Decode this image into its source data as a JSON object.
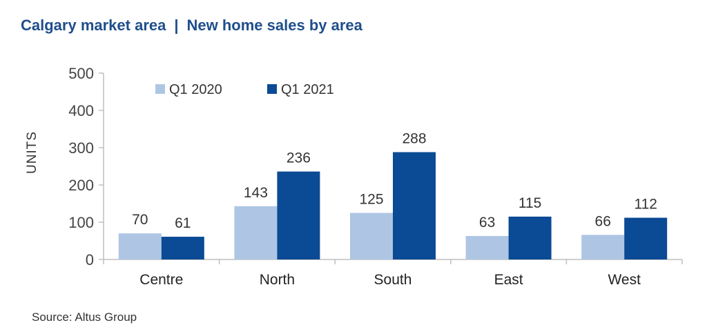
{
  "header": {
    "title_left": "Calgary market area",
    "separator": "|",
    "title_right": "New home sales by area"
  },
  "footer": {
    "source": "Source: Altus Group"
  },
  "colors": {
    "q1_2020": "#aec6e4",
    "q1_2021": "#0b4a94",
    "axis": "#bfbfbf",
    "title": "#1f4e8c"
  },
  "chart_data": {
    "type": "bar",
    "title": "Calgary market area | New home sales by area",
    "xlabel": "",
    "ylabel": "UNITS",
    "ylim": [
      0,
      500
    ],
    "yticks": [
      0,
      100,
      200,
      300,
      400,
      500
    ],
    "grid": false,
    "legend_position": "top-left",
    "categories": [
      "Centre",
      "North",
      "South",
      "East",
      "West"
    ],
    "series": [
      {
        "name": "Q1 2020",
        "values": [
          70,
          143,
          125,
          63,
          66
        ]
      },
      {
        "name": "Q1 2021",
        "values": [
          61,
          236,
          288,
          115,
          112
        ]
      }
    ]
  }
}
